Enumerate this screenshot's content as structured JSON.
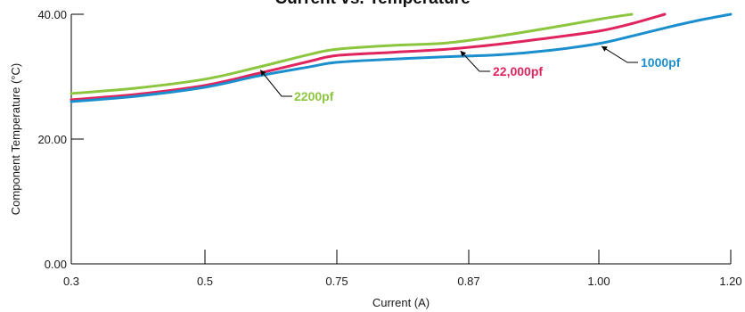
{
  "chart_data": {
    "type": "line",
    "title": "Current vs. Temperature",
    "xlabel": "Current (A)",
    "ylabel": "Component Temperature (°C)",
    "x_tick_labels": [
      "0.3",
      "0.5",
      "0.75",
      "0.87",
      "1.00",
      "1.20"
    ],
    "x_tick_values": [
      0.3,
      0.5,
      0.75,
      0.87,
      1.0,
      1.2
    ],
    "y_tick_labels": [
      "0.00",
      "20.00",
      "40.00"
    ],
    "y_tick_values": [
      0,
      20,
      40
    ],
    "xlim": [
      0.3,
      1.2
    ],
    "ylim": [
      0,
      40
    ],
    "grid": false,
    "legend": "inline labels with arrows",
    "series": [
      {
        "name": "2200pf",
        "color": "#8cc63f",
        "x": [
          0.3,
          0.4,
          0.5,
          0.6,
          0.7,
          0.75,
          0.8,
          0.85,
          0.9,
          0.95,
          1.0,
          1.05
        ],
        "y": [
          27.3,
          28.2,
          29.6,
          31.5,
          33.6,
          34.4,
          35.0,
          35.4,
          36.5,
          37.8,
          39.2,
          40.0
        ]
      },
      {
        "name": "22,000pf",
        "color": "#e0245e",
        "x": [
          0.3,
          0.4,
          0.5,
          0.6,
          0.7,
          0.75,
          0.8,
          0.85,
          0.9,
          0.95,
          1.0,
          1.05,
          1.1
        ],
        "y": [
          26.3,
          27.2,
          28.6,
          30.5,
          32.5,
          33.4,
          33.9,
          34.4,
          35.2,
          36.2,
          37.3,
          38.5,
          40.0
        ]
      },
      {
        "name": "1000pf",
        "color": "#1b8fce",
        "x": [
          0.3,
          0.4,
          0.5,
          0.6,
          0.7,
          0.75,
          0.8,
          0.85,
          0.9,
          0.95,
          1.0,
          1.05,
          1.1,
          1.15,
          1.2
        ],
        "y": [
          26.0,
          26.9,
          28.3,
          30.1,
          31.6,
          32.3,
          32.8,
          33.2,
          33.5,
          34.2,
          35.3,
          36.5,
          37.8,
          39.0,
          40.0
        ]
      }
    ]
  }
}
